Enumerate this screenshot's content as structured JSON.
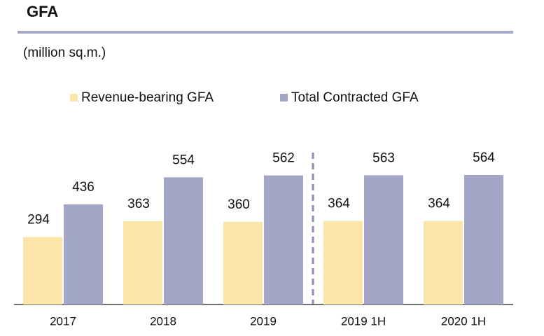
{
  "chart_data": {
    "type": "bar",
    "title": "GFA",
    "subtitle": "(million sq.m.)",
    "categories": [
      "2017",
      "2018",
      "2019",
      "2019 1H",
      "2020 1H"
    ],
    "series": [
      {
        "name": "Revenue-bearing GFA",
        "color": "#fce5a8",
        "values": [
          294,
          363,
          360,
          364,
          364
        ]
      },
      {
        "name": "Total Contracted GFA",
        "color": "#a4a6c8",
        "values": [
          436,
          554,
          562,
          563,
          564
        ]
      }
    ]
  }
}
